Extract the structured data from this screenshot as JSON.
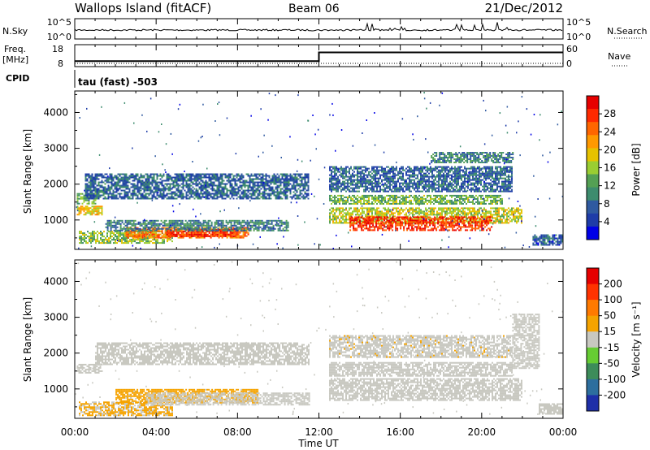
{
  "header": {
    "site": "Wallops Island (fitACF)",
    "beam": "Beam 06",
    "date": "21/Dec/2012"
  },
  "status": {
    "nsky_label": "N.Sky",
    "nsky_ticks": [
      "10^5",
      "10^0"
    ],
    "nsearch_label": "N.Search",
    "nsearch_ticks": [
      "10^5",
      "10^0"
    ],
    "freq_label": "Freq.",
    "freq_unit": "[MHz]",
    "freq_ticks": [
      "18",
      "8"
    ],
    "nave_label": "Nave",
    "nave_ticks": [
      "60",
      "0"
    ],
    "cpid_label": "CPID",
    "cpid_text": "tau (fast) -503",
    "freq_series": {
      "x": [
        0,
        12.0,
        12.0,
        24
      ],
      "y": [
        10.5,
        10.5,
        14.5,
        14.5
      ]
    }
  },
  "power_panel": {
    "ylabel": "Slant Range [km]",
    "yticks": [
      "4000",
      "3000",
      "2000",
      "1000"
    ],
    "colorbar": {
      "label": "Power [dB]",
      "ticks": [
        "28",
        "24",
        "20",
        "16",
        "12",
        "8",
        "4"
      ],
      "colors": [
        "#0000e6",
        "#1e3ca8",
        "#2f5aa0",
        "#3d8c6e",
        "#54a054",
        "#9acd32",
        "#e6c200",
        "#ff9900",
        "#ff6600",
        "#ff2a00",
        "#e60000"
      ]
    }
  },
  "velocity_panel": {
    "ylabel": "Slant Range [km]",
    "yticks": [
      "4000",
      "3000",
      "2000",
      "1000"
    ],
    "colorbar": {
      "label": "Velocity [m s⁻¹]",
      "ticks": [
        "200",
        "100",
        "50",
        "15",
        "-15",
        "-50",
        "-100",
        "-200"
      ],
      "colors": [
        "#1e2fa8",
        "#2d6e9e",
        "#3d8c5a",
        "#66cc33",
        "#c8c8c0",
        "#f5a300",
        "#ff7a00",
        "#ff3300",
        "#e60000"
      ]
    }
  },
  "xaxis": {
    "label": "Time UT",
    "ticks": [
      "00:00",
      "04:00",
      "08:00",
      "12:00",
      "16:00",
      "20:00",
      "00:00"
    ]
  },
  "chart_data": [
    {
      "type": "heatmap",
      "title": "Power [dB]",
      "xlabel": "Time UT",
      "ylabel": "Slant Range [km]",
      "xlim": [
        0,
        24
      ],
      "ylim": [
        180,
        4600
      ],
      "zlim": [
        0,
        30
      ],
      "regions": [
        {
          "x": [
            0.1,
            1.3
          ],
          "y": [
            1150,
            1400
          ],
          "z": 18
        },
        {
          "x": [
            0.1,
            1.0
          ],
          "y": [
            1450,
            1750
          ],
          "z": 12
        },
        {
          "x": [
            0.2,
            4.8
          ],
          "y": [
            350,
            700
          ],
          "z": 14
        },
        {
          "x": [
            2.5,
            8.5
          ],
          "y": [
            500,
            800
          ],
          "z": 22
        },
        {
          "x": [
            4.5,
            8.0
          ],
          "y": [
            550,
            750
          ],
          "z": 27
        },
        {
          "x": [
            1.5,
            10.5
          ],
          "y": [
            700,
            1000
          ],
          "z": 9
        },
        {
          "x": [
            0.5,
            11.5
          ],
          "y": [
            1600,
            2300
          ],
          "z": 7
        },
        {
          "x": [
            12.5,
            22.0
          ],
          "y": [
            900,
            1350
          ],
          "z": 16
        },
        {
          "x": [
            13.5,
            20.5
          ],
          "y": [
            700,
            1100
          ],
          "z": 26
        },
        {
          "x": [
            12.5,
            21.0
          ],
          "y": [
            1450,
            1700
          ],
          "z": 13
        },
        {
          "x": [
            12.5,
            21.5
          ],
          "y": [
            1800,
            2500
          ],
          "z": 7
        },
        {
          "x": [
            17.5,
            21.5
          ],
          "y": [
            2600,
            2900
          ],
          "z": 9
        },
        {
          "x": [
            22.5,
            24.0
          ],
          "y": [
            300,
            600
          ],
          "z": 6
        }
      ]
    },
    {
      "type": "heatmap",
      "title": "Velocity [m s⁻¹]",
      "xlabel": "Time UT",
      "ylabel": "Slant Range [km]",
      "xlim": [
        0,
        24
      ],
      "ylim": [
        180,
        4600
      ],
      "zlim": [
        -200,
        200
      ],
      "regions": [
        {
          "x": [
            0.1,
            1.3
          ],
          "y": [
            1450,
            1700
          ],
          "z": 0
        },
        {
          "x": [
            0.2,
            4.8
          ],
          "y": [
            250,
            650
          ],
          "z": 30
        },
        {
          "x": [
            2.0,
            9.0
          ],
          "y": [
            600,
            1000
          ],
          "z": 40
        },
        {
          "x": [
            3.5,
            11.5
          ],
          "y": [
            550,
            900
          ],
          "z": 0
        },
        {
          "x": [
            1.0,
            11.5
          ],
          "y": [
            1700,
            2300
          ],
          "z": 0
        },
        {
          "x": [
            12.5,
            22.0
          ],
          "y": [
            700,
            1300
          ],
          "z": 0
        },
        {
          "x": [
            12.5,
            21.5
          ],
          "y": [
            1350,
            1750
          ],
          "z": 0
        },
        {
          "x": [
            12.5,
            21.5
          ],
          "y": [
            1900,
            2500
          ],
          "z": 5
        },
        {
          "x": [
            21.5,
            22.8
          ],
          "y": [
            1600,
            3100
          ],
          "z": 0
        },
        {
          "x": [
            22.8,
            24.0
          ],
          "y": [
            300,
            600
          ],
          "z": 0
        }
      ]
    }
  ]
}
